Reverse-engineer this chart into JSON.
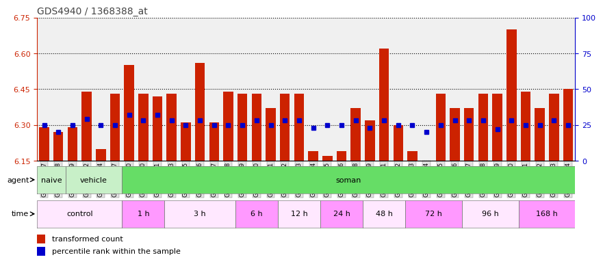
{
  "title": "GDS4940 / 1368388_at",
  "samples": [
    "GSM338857",
    "GSM338858",
    "GSM338859",
    "GSM338862",
    "GSM338864",
    "GSM338877",
    "GSM338880",
    "GSM338860",
    "GSM338861",
    "GSM338863",
    "GSM338865",
    "GSM338866",
    "GSM338867",
    "GSM338868",
    "GSM338869",
    "GSM338870",
    "GSM338871",
    "GSM338872",
    "GSM338873",
    "GSM338874",
    "GSM338875",
    "GSM338876",
    "GSM338878",
    "GSM338879",
    "GSM338881",
    "GSM338882",
    "GSM338883",
    "GSM338884",
    "GSM338885",
    "GSM338886",
    "GSM338887",
    "GSM338888",
    "GSM338889",
    "GSM338890",
    "GSM338891",
    "GSM338892",
    "GSM338893",
    "GSM338894"
  ],
  "red_values": [
    6.29,
    6.27,
    6.29,
    6.44,
    6.2,
    6.43,
    6.55,
    6.43,
    6.42,
    6.43,
    6.31,
    6.56,
    6.31,
    6.44,
    6.43,
    6.43,
    6.37,
    6.43,
    6.43,
    6.19,
    6.17,
    6.19,
    6.37,
    6.32,
    6.62,
    6.3,
    6.19,
    6.15,
    6.43,
    6.37,
    6.37,
    6.43,
    6.43,
    6.7,
    6.44,
    6.37,
    6.43,
    6.45
  ],
  "blue_values": [
    25,
    20,
    25,
    29,
    25,
    25,
    32,
    28,
    32,
    28,
    25,
    28,
    25,
    25,
    25,
    28,
    25,
    28,
    28,
    23,
    25,
    25,
    28,
    23,
    28,
    25,
    25,
    20,
    25,
    28,
    28,
    28,
    22,
    28,
    25,
    25,
    28,
    25
  ],
  "ylim_left": [
    6.15,
    6.75
  ],
  "ylim_right": [
    0,
    100
  ],
  "yticks_left": [
    6.15,
    6.3,
    6.45,
    6.6,
    6.75
  ],
  "yticks_right": [
    0,
    25,
    50,
    75,
    100
  ],
  "base_value": 6.15,
  "agent_groups": [
    {
      "label": "naive",
      "start": 0,
      "end": 2,
      "color": "#C8F0C8"
    },
    {
      "label": "vehicle",
      "start": 2,
      "end": 6,
      "color": "#C8F0C8"
    },
    {
      "label": "soman",
      "start": 6,
      "end": 38,
      "color": "#66DD66"
    }
  ],
  "time_groups": [
    {
      "label": "control",
      "start": 0,
      "end": 6,
      "color": "#FFE8FF"
    },
    {
      "label": "1 h",
      "start": 6,
      "end": 9,
      "color": "#FF99FF"
    },
    {
      "label": "3 h",
      "start": 9,
      "end": 14,
      "color": "#FFE8FF"
    },
    {
      "label": "6 h",
      "start": 14,
      "end": 17,
      "color": "#FF99FF"
    },
    {
      "label": "12 h",
      "start": 17,
      "end": 20,
      "color": "#FFE8FF"
    },
    {
      "label": "24 h",
      "start": 20,
      "end": 23,
      "color": "#FF99FF"
    },
    {
      "label": "48 h",
      "start": 23,
      "end": 26,
      "color": "#FFE8FF"
    },
    {
      "label": "72 h",
      "start": 26,
      "end": 30,
      "color": "#FF99FF"
    },
    {
      "label": "96 h",
      "start": 30,
      "end": 34,
      "color": "#FFE8FF"
    },
    {
      "label": "168 h",
      "start": 34,
      "end": 38,
      "color": "#FF99FF"
    }
  ],
  "bar_color": "#CC2200",
  "dot_color": "#0000CC",
  "plot_bg": "#F0F0F0",
  "left_axis_color": "#CC2200",
  "right_axis_color": "#0000CC",
  "tick_label_bg": "#E0E0E0"
}
